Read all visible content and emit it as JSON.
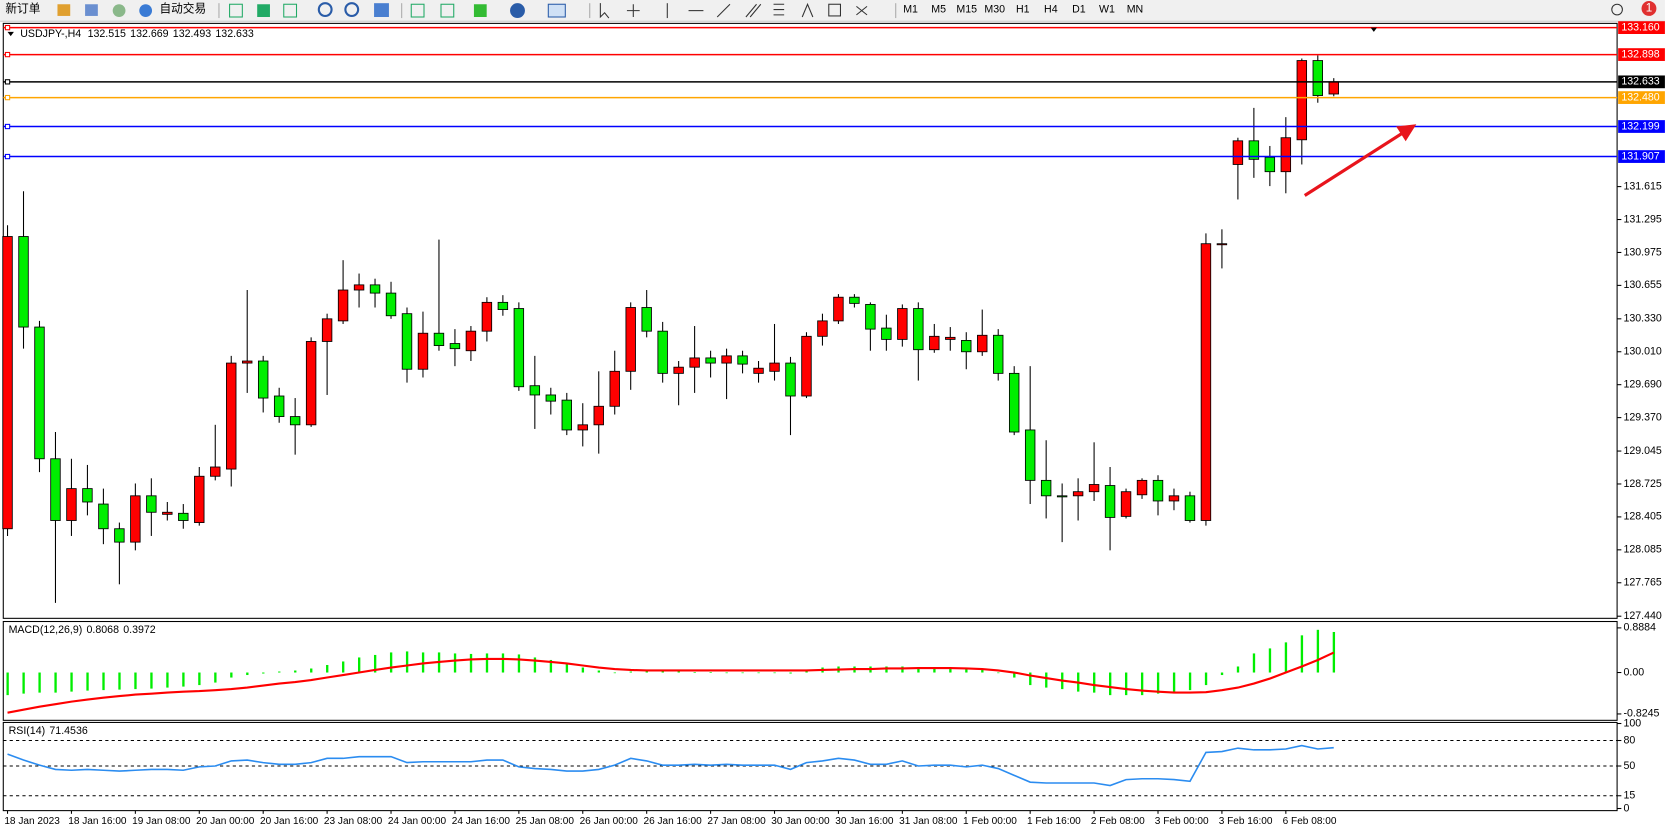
{
  "toolbar": {
    "new_order": "新订单",
    "auto_trading": "自动交易",
    "timeframes": [
      "M1",
      "M5",
      "M15",
      "M30",
      "H1",
      "H4",
      "D1",
      "W1",
      "MN"
    ],
    "alerts": 1
  },
  "chart_data": [
    {
      "type": "candlestick",
      "title": "USDJPY-,H4",
      "categories": [
        "18 Jan 2023",
        null,
        null,
        null,
        "18 Jan 16:00",
        null,
        null,
        null,
        "19 Jan 08:00",
        null,
        null,
        null,
        "20 Jan 00:00",
        null,
        null,
        null,
        "20 Jan 16:00",
        null,
        null,
        null,
        "23 Jan 08:00",
        null,
        null,
        null,
        "24 Jan 00:00",
        null,
        null,
        null,
        "24 Jan 16:00",
        null,
        null,
        null,
        "25 Jan 08:00",
        null,
        null,
        null,
        "26 Jan 00:00",
        null,
        null,
        null,
        "26 Jan 16:00",
        null,
        null,
        null,
        "27 Jan 08:00",
        null,
        null,
        null,
        "30 Jan 00:00",
        null,
        null,
        null,
        "30 Jan 16:00",
        null,
        null,
        null,
        "31 Jan 08:00",
        null,
        null,
        null,
        "1 Feb 00:00",
        null,
        null,
        null,
        "1 Feb 16:00",
        null,
        null,
        null,
        "2 Feb 08:00",
        null,
        null,
        null,
        "3 Feb 00:00",
        null,
        null,
        null,
        "3 Feb 16:00",
        null,
        null,
        null,
        "6 Feb 08:00",
        null,
        null,
        null
      ],
      "open": [
        128.29,
        131.13,
        130.25,
        128.97,
        128.37,
        128.68,
        128.53,
        128.29,
        128.16,
        128.61,
        128.43,
        128.44,
        128.35,
        128.8,
        128.87,
        129.9,
        129.92,
        129.58,
        129.38,
        129.3,
        130.11,
        130.31,
        130.61,
        130.66,
        130.58,
        130.38,
        129.84,
        130.19,
        130.09,
        130.02,
        130.21,
        130.49,
        130.43,
        129.68,
        129.59,
        129.54,
        129.25,
        129.3,
        129.48,
        129.82,
        130.44,
        130.21,
        129.8,
        129.86,
        129.95,
        129.9,
        129.97,
        129.8,
        129.82,
        129.9,
        129.58,
        130.16,
        130.31,
        130.54,
        130.47,
        130.24,
        130.13,
        130.43,
        130.03,
        130.13,
        130.12,
        130.01,
        130.17,
        129.8,
        129.25,
        128.76,
        128.61,
        128.61,
        128.65,
        128.71,
        128.41,
        128.62,
        128.76,
        128.56,
        128.61,
        128.37,
        131.05,
        131.83,
        132.06,
        131.9,
        131.76,
        132.07,
        132.84,
        132.515
      ],
      "high": [
        131.24,
        131.57,
        130.31,
        129.23,
        128.97,
        128.91,
        128.68,
        128.35,
        128.73,
        128.78,
        128.55,
        128.53,
        128.89,
        129.3,
        129.97,
        130.61,
        129.97,
        129.66,
        129.56,
        130.15,
        130.38,
        130.9,
        130.77,
        130.72,
        130.69,
        130.44,
        130.4,
        131.1,
        130.23,
        130.26,
        130.54,
        130.56,
        130.49,
        129.97,
        129.66,
        129.61,
        129.51,
        129.82,
        130.02,
        130.49,
        130.61,
        130.3,
        129.92,
        130.26,
        130.02,
        130.04,
        130.02,
        129.92,
        130.28,
        129.96,
        130.2,
        130.38,
        130.57,
        130.57,
        130.49,
        130.37,
        130.47,
        130.49,
        130.28,
        130.25,
        130.2,
        130.42,
        130.23,
        129.87,
        129.87,
        129.15,
        128.73,
        128.78,
        129.13,
        128.89,
        128.68,
        128.78,
        128.81,
        128.68,
        128.65,
        131.16,
        131.2,
        132.09,
        132.38,
        132.01,
        132.29,
        132.86,
        132.89,
        132.669
      ],
      "low": [
        128.22,
        130.04,
        128.84,
        127.57,
        128.22,
        128.42,
        128.14,
        127.75,
        128.08,
        128.22,
        128.37,
        128.29,
        128.32,
        128.76,
        128.7,
        129.61,
        129.42,
        129.32,
        129.01,
        129.28,
        129.59,
        130.28,
        130.44,
        130.44,
        130.33,
        129.71,
        129.76,
        130.02,
        129.87,
        129.92,
        130.11,
        130.36,
        129.63,
        129.26,
        129.4,
        129.2,
        129.09,
        129.02,
        129.4,
        129.64,
        130.15,
        129.71,
        129.49,
        129.61,
        129.76,
        129.55,
        129.8,
        129.71,
        129.73,
        129.2,
        129.56,
        130.07,
        130.28,
        130.44,
        130.02,
        130.02,
        130.06,
        129.73,
        130.0,
        130.02,
        129.84,
        129.97,
        129.73,
        129.2,
        128.53,
        128.39,
        128.16,
        128.37,
        128.56,
        128.08,
        128.39,
        128.58,
        128.42,
        128.47,
        128.35,
        128.32,
        130.82,
        131.49,
        131.7,
        131.62,
        131.55,
        131.83,
        132.43,
        132.493
      ],
      "close": [
        131.13,
        130.25,
        128.97,
        128.37,
        128.68,
        128.55,
        128.29,
        128.16,
        128.61,
        128.45,
        128.45,
        128.37,
        128.8,
        128.89,
        129.9,
        129.92,
        129.56,
        129.38,
        129.3,
        130.11,
        130.33,
        130.61,
        130.66,
        130.58,
        130.36,
        129.84,
        130.19,
        130.07,
        130.04,
        130.21,
        130.49,
        130.42,
        129.67,
        129.59,
        129.53,
        129.25,
        129.3,
        129.48,
        129.82,
        130.44,
        130.21,
        129.8,
        129.86,
        129.95,
        129.9,
        129.97,
        129.89,
        129.85,
        129.9,
        129.58,
        130.16,
        130.31,
        130.54,
        130.48,
        130.23,
        130.13,
        130.43,
        130.03,
        130.16,
        130.15,
        130.01,
        130.17,
        129.8,
        129.23,
        128.76,
        128.61,
        128.6,
        128.65,
        128.72,
        128.4,
        128.65,
        128.76,
        128.56,
        128.61,
        128.37,
        131.06,
        131.06,
        132.06,
        131.88,
        131.76,
        132.09,
        132.84,
        132.5,
        132.633
      ],
      "up_color": "#ff0000",
      "down_color": "#00ee00",
      "wick_color": "#000000",
      "ylim": [
        127.44,
        133.16
      ],
      "yticks": [
        131.615,
        131.295,
        130.975,
        130.655,
        {
          "value": 130.33,
          "label": "130.330"
        },
        {
          "value": 130.01,
          "label": "130.010"
        },
        {
          "value": 129.69,
          "label": "129.690"
        },
        {
          "value": 129.37,
          "label": "129.370"
        },
        129.045,
        128.725,
        128.405,
        128.085,
        127.765,
        {
          "value": 127.44,
          "label": "127.440"
        }
      ],
      "levels": [
        {
          "value": 133.16,
          "label": "133.160",
          "color": "#ff0000"
        },
        {
          "value": 132.898,
          "label": "132.898",
          "color": "#ff0000"
        },
        {
          "value": 132.633,
          "label": "132.633",
          "color": "#000000"
        },
        {
          "value": 132.48,
          "label": "132.480",
          "color": "#ffa500"
        },
        {
          "value": 132.199,
          "label": "132.199",
          "color": "#0000ff"
        },
        {
          "value": 131.907,
          "label": "131.907",
          "color": "#0000ff"
        }
      ]
    },
    {
      "type": "macd",
      "title": "MACD(12,26,9)",
      "series": [
        {
          "color": "#00ee00",
          "values": [
            -0.45,
            -0.42,
            -0.4,
            -0.4,
            -0.38,
            -0.36,
            -0.35,
            -0.34,
            -0.33,
            -0.32,
            -0.3,
            -0.28,
            -0.25,
            -0.2,
            -0.1,
            -0.05,
            -0.02,
            0.02,
            0.04,
            0.08,
            0.15,
            0.22,
            0.3,
            0.35,
            0.4,
            0.42,
            0.4,
            0.4,
            0.38,
            0.37,
            0.38,
            0.38,
            0.36,
            0.3,
            0.25,
            0.18,
            0.1,
            0.04,
            0,
            0.02,
            0.05,
            0.04,
            0.02,
            0.01,
            0.01,
            0,
            0,
            0,
            0,
            -0.02,
            0.05,
            0.1,
            0.12,
            0.12,
            0.12,
            0.12,
            0.12,
            0.1,
            0.1,
            0.1,
            0.08,
            0.08,
            0,
            -0.1,
            -0.25,
            -0.3,
            -0.33,
            -0.38,
            -0.4,
            -0.45,
            -0.45,
            -0.45,
            -0.42,
            -0.38,
            -0.35,
            -0.25,
            -0.05,
            0.12,
            0.38,
            0.48,
            0.6,
            0.74,
            0.85,
            0.8068
          ]
        },
        {
          "color": "#ff0000",
          "values": [
            -0.8,
            -0.74,
            -0.68,
            -0.63,
            -0.58,
            -0.54,
            -0.5,
            -0.47,
            -0.44,
            -0.42,
            -0.4,
            -0.38,
            -0.37,
            -0.35,
            -0.33,
            -0.3,
            -0.26,
            -0.22,
            -0.19,
            -0.15,
            -0.1,
            -0.05,
            0,
            0.05,
            0.1,
            0.14,
            0.18,
            0.21,
            0.24,
            0.26,
            0.27,
            0.27,
            0.26,
            0.24,
            0.21,
            0.18,
            0.14,
            0.1,
            0.07,
            0.05,
            0.04,
            0.04,
            0.04,
            0.04,
            0.04,
            0.04,
            0.04,
            0.04,
            0.04,
            0.04,
            0.04,
            0.05,
            0.06,
            0.07,
            0.07,
            0.08,
            0.08,
            0.09,
            0.09,
            0.09,
            0.08,
            0.07,
            0.04,
            0,
            -0.06,
            -0.11,
            -0.16,
            -0.2,
            -0.25,
            -0.29,
            -0.33,
            -0.36,
            -0.38,
            -0.4,
            -0.4,
            -0.39,
            -0.35,
            -0.3,
            -0.22,
            -0.12,
            0,
            0.12,
            0.25,
            0.3972
          ]
        }
      ],
      "ylim": [
        -0.8245,
        0.8884
      ],
      "yticks": [
        0.8884,
        {
          "value": 0,
          "label": "0.00"
        },
        -0.8245
      ]
    },
    {
      "type": "line",
      "title": "RSI(14)",
      "series": [
        {
          "color": "#2b8cf0",
          "values": [
            64,
            57,
            51,
            46,
            45,
            46,
            45,
            44,
            45,
            46,
            46,
            45,
            49,
            50,
            56,
            57,
            54,
            52,
            52,
            54,
            59,
            59,
            61,
            61,
            61,
            54,
            55,
            55,
            55,
            55,
            57,
            57,
            49,
            47,
            46,
            44,
            44,
            46,
            51,
            59,
            56,
            51,
            51,
            52,
            51,
            52,
            51,
            51,
            51,
            46,
            54,
            56,
            59,
            57,
            52,
            52,
            56,
            50,
            51,
            51,
            49,
            51,
            47,
            39,
            31,
            30,
            30,
            30,
            30,
            27,
            34,
            35,
            35,
            34,
            32,
            66,
            67,
            71,
            69,
            69,
            70,
            74,
            70,
            71.4536
          ]
        }
      ],
      "ylim": [
        0,
        100
      ],
      "yticks": [
        100,
        80,
        50,
        15,
        0
      ],
      "levels": [
        80,
        50,
        15
      ]
    }
  ]
}
